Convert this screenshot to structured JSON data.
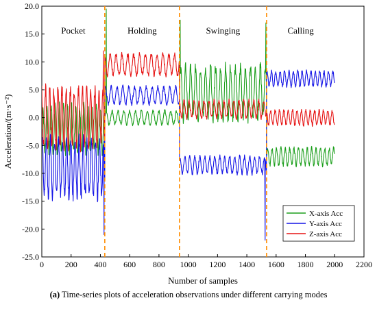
{
  "caption": {
    "label": "(a)",
    "text": "Time-series plots of acceleration observations under different carrying modes"
  },
  "chart_data": {
    "type": "line",
    "title": "",
    "xlabel": "Number of samples",
    "ylabel": "Acceleration/(m·s⁻²)",
    "xlim": [
      0,
      2200
    ],
    "ylim": [
      -25,
      20
    ],
    "xticks": [
      0,
      200,
      400,
      600,
      800,
      1000,
      1200,
      1400,
      1600,
      1800,
      2000,
      2200
    ],
    "yticks": [
      -25,
      -20,
      -15,
      -10,
      -5,
      0,
      5,
      10,
      15,
      20
    ],
    "grid": false,
    "legend_position": "bottom-right",
    "modes": [
      {
        "label": "Pocket",
        "x_start": 0,
        "x_end": 430
      },
      {
        "label": "Holding",
        "x_start": 430,
        "x_end": 940
      },
      {
        "label": "Swinging",
        "x_start": 940,
        "x_end": 1535
      },
      {
        "label": "Calling",
        "x_start": 1535,
        "x_end": 2000
      }
    ],
    "mode_boundaries": [
      430,
      940,
      1535
    ],
    "boundary_color": "#ff8c00",
    "series": [
      {
        "name": "X-axis Acc",
        "color": "#1a9e1a",
        "segments": [
          {
            "x_start": 0,
            "x_end": 430,
            "mean": -2,
            "amplitude": 4,
            "period": 28
          },
          {
            "x_start": 430,
            "x_end": 940,
            "mean": 0,
            "amplitude": 1.2,
            "period": 40
          },
          {
            "x_start": 940,
            "x_end": 1535,
            "mean": 4.5,
            "amplitude": 4.5,
            "period": 34
          },
          {
            "x_start": 1535,
            "x_end": 2000,
            "mean": -7,
            "amplitude": 1.5,
            "period": 30
          }
        ],
        "spikes": [
          [
            440,
            19.5
          ],
          [
            945,
            17.5
          ],
          [
            1530,
            17
          ]
        ]
      },
      {
        "name": "Y-axis Acc",
        "color": "#1414e6",
        "segments": [
          {
            "x_start": 0,
            "x_end": 430,
            "mean": -9,
            "amplitude": 5,
            "period": 28
          },
          {
            "x_start": 430,
            "x_end": 940,
            "mean": 4,
            "amplitude": 1.5,
            "period": 40
          },
          {
            "x_start": 940,
            "x_end": 1535,
            "mean": -8.5,
            "amplitude": 1.5,
            "period": 34
          },
          {
            "x_start": 1535,
            "x_end": 2000,
            "mean": 7,
            "amplitude": 1.3,
            "period": 30
          }
        ],
        "spikes": [
          [
            425,
            -21
          ],
          [
            1525,
            -22
          ]
        ]
      },
      {
        "name": "Z-axis Acc",
        "color": "#e61414",
        "segments": [
          {
            "x_start": 0,
            "x_end": 430,
            "mean": 0,
            "amplitude": 5,
            "period": 28
          },
          {
            "x_start": 430,
            "x_end": 940,
            "mean": 9.5,
            "amplitude": 1.8,
            "period": 40
          },
          {
            "x_start": 940,
            "x_end": 1535,
            "mean": 1.5,
            "amplitude": 1.5,
            "period": 34
          },
          {
            "x_start": 1535,
            "x_end": 2000,
            "mean": 0,
            "amplitude": 1.3,
            "period": 30
          }
        ],
        "spikes": [
          [
            420,
            12
          ]
        ]
      }
    ]
  }
}
